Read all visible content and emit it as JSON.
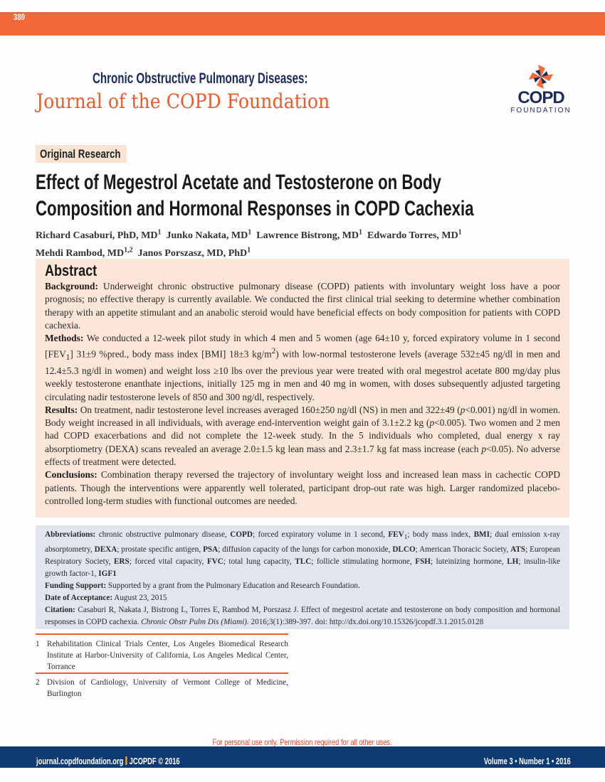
{
  "header": {
    "page_number": "389",
    "journal_line1": "Chronic Obstructive Pulmonary Diseases:",
    "journal_line2": "Journal of the COPD Foundation",
    "logo_text": "COPD",
    "logo_sub": "FOUNDATION"
  },
  "colors": {
    "orange": "#f4693a",
    "navy": "#1c2b5e",
    "footer_blue": "#0d3a72",
    "abstract_bg": "#fbe6d8",
    "info_bg": "#e3e5ee"
  },
  "article": {
    "category": "Original Research",
    "title_line1": "Effect of Megestrol Acetate and Testosterone on Body",
    "title_line2": "Composition and Hormonal Responses in COPD Cachexia",
    "authors": [
      {
        "name": "Richard Casaburi, PhD, MD",
        "aff": "1"
      },
      {
        "name": "Junko Nakata, MD",
        "aff": "1"
      },
      {
        "name": "Lawrence Bistrong, MD",
        "aff": "1"
      },
      {
        "name": "Edwardo Torres, MD",
        "aff": "1"
      },
      {
        "name": "Mehdi Rambod, MD",
        "aff": "1,2"
      },
      {
        "name": "Janos Porszasz, MD, PhD",
        "aff": "1"
      }
    ]
  },
  "abstract": {
    "heading": "Abstract",
    "background_label": "Background:",
    "background": "Underweight chronic obstructive pulmonary disease (COPD) patients with involuntary weight loss have a poor prognosis; no effective therapy is currently available.  We conducted the first clinical trial seeking to determine whether combination therapy with an appetite stimulant and an anabolic steroid would have beneficial effects on body composition for patients with COPD cachexia.",
    "methods_label": "Methods:",
    "methods_a": "We conducted a 12-week pilot study in which 4 men and 5 women (age 64±10 y, forced expiratory volume in 1 second [FEV",
    "methods_sub": "1",
    "methods_b": "] 31±9 %pred., body mass index [BMI] 18±3 kg/m",
    "methods_sup": "2",
    "methods_c": ") with low-normal testosterone levels (average 532±45 ng/dl in men and 12.4±5.3 ng/dl in women) and weight loss ≥10 lbs over the previous year were treated with oral megestrol acetate 800 mg/day plus weekly testosterone enanthate injections, initially 125 mg in men and 40 mg in women, with doses subsequently adjusted targeting circulating nadir testosterone levels of 850 and 300 ng/dl, respectively.",
    "results_label": "Results:",
    "results_a": "On treatment, nadir testosterone level increases averaged 160±250 ng/dl (NS) in men and 322±49 (",
    "p": "p",
    "results_b": "<0.001) ng/dl in women.  Body weight increased in all individuals, with average end-intervention weight gain of 3.1±2.2 kg (",
    "results_c": "<0.005). Two women and 2 men had COPD exacerbations and did not complete the 12-week study. In the 5 individuals who completed, dual energy x ray absorptiometry (DEXA) scans revealed an average 2.0±1.5 kg lean mass and 2.3±1.7 kg fat mass increase (each ",
    "results_d": "<0.05). No adverse effects of treatment were detected.",
    "conclusions_label": "Conclusions:",
    "conclusions": "Combination therapy reversed the trajectory of involuntary weight loss and increased lean mass in cachectic COPD patients.  Though the interventions were apparently well tolerated, participant drop-out rate was high. Larger randomized placebo-controlled long-term studies with functional outcomes are needed."
  },
  "info": {
    "abbrev_label": "Abbreviations:",
    "abbrev": [
      {
        "t": "chronic obstructive pulmonary disease, ",
        "b": "COPD"
      },
      {
        "t": "; forced expiratory volume in 1 second, ",
        "b": "FEV",
        "sub": "1"
      },
      {
        "t": "; body mass index, ",
        "b": "BMI"
      },
      {
        "t": ";  dual emission x-ray absorptometry, ",
        "b": "DEXA"
      },
      {
        "t": "; prostate specific antigen, ",
        "b": "PSA"
      },
      {
        "t": "; diffusion capacity of the lungs for carbon monoxide, ",
        "b": "DLCO"
      },
      {
        "t": "; American Thoracic Society, ",
        "b": "ATS"
      },
      {
        "t": "; European Respiratory Society, ",
        "b": "ERS"
      },
      {
        "t": "; forced vital capacity, ",
        "b": "FVC"
      },
      {
        "t": "; total lung capacity, ",
        "b": "TLC"
      },
      {
        "t": "; follicle stimulating hormone, ",
        "b": "FSH"
      },
      {
        "t": "; luteinizing hormone, ",
        "b": "LH"
      },
      {
        "t": "; insulin-like growth factor-1, ",
        "b": "IGF1"
      }
    ],
    "funding_label": "Funding Support:",
    "funding": "Supported by a grant from the Pulmonary Education and Research Foundation.",
    "date_label": "Date of Acceptance:",
    "date": "August 23, 2015",
    "citation_label": "Citation:",
    "citation_a": "Casaburi R, Nakata J, Bistrong L, Torres E, Rambod M, Porszasz J. Effect of megestrol acetate and testosterone on body composition and hormonal responses in COPD cachexia. ",
    "citation_journal": "Chronic Obstr Pulm Dis (Miami)",
    "citation_b": ". 2016;3(1):389-397. doi: http://dx.doi.org/10.15326/jcopdf.3.1.2015.0128"
  },
  "footnotes": [
    {
      "n": "1",
      "text": "Rehabilitation Clinical Trials Center, Los Angeles Biomedical Research Institute at Harbor-University of California, Los Angeles Medical Center, Torrance"
    },
    {
      "n": "2",
      "text": "Division of Cardiology, University of Vermont College of Medicine, Burlington"
    }
  ],
  "footer": {
    "notice": "For personal use only. Permission required for all other uses.",
    "site": "journal.copdfoundation.org",
    "copyright": "JCOPDF © 2016",
    "issue": "Volume 3 • Number 1 • 2016"
  }
}
